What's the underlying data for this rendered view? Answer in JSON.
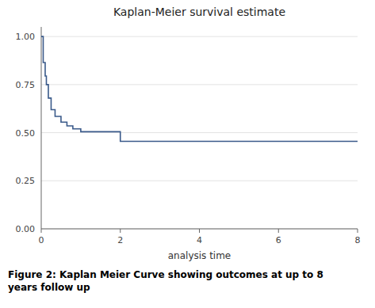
{
  "chart_data": {
    "type": "step",
    "title": "Kaplan-Meier survival estimate",
    "x_label": "analysis time",
    "caption": "Figure 2: Kaplan Meier Curve showing outcomes at up to 8\nyears follow up",
    "x": [
      0.0,
      0.05,
      0.1,
      0.13,
      0.18,
      0.25,
      0.35,
      0.5,
      0.65,
      0.8,
      1.0,
      1.85,
      2.0,
      8.0
    ],
    "values": [
      1.0,
      0.865,
      0.795,
      0.75,
      0.68,
      0.62,
      0.585,
      0.555,
      0.535,
      0.52,
      0.505,
      0.505,
      0.455,
      0.455
    ],
    "color": "#3a5a8a",
    "xlim": [
      0,
      8
    ],
    "ylim": [
      0,
      1.05
    ],
    "xticks": [
      0,
      2,
      4,
      6,
      8
    ],
    "yticks": [
      {
        "value": 0.0,
        "label": "0.00"
      },
      {
        "value": 0.25,
        "label": "0.25"
      },
      {
        "value": 0.5,
        "label": "0.50"
      },
      {
        "value": 0.75,
        "label": "0.75"
      },
      {
        "value": 1.0,
        "label": "1.00"
      }
    ],
    "grid": "y"
  }
}
